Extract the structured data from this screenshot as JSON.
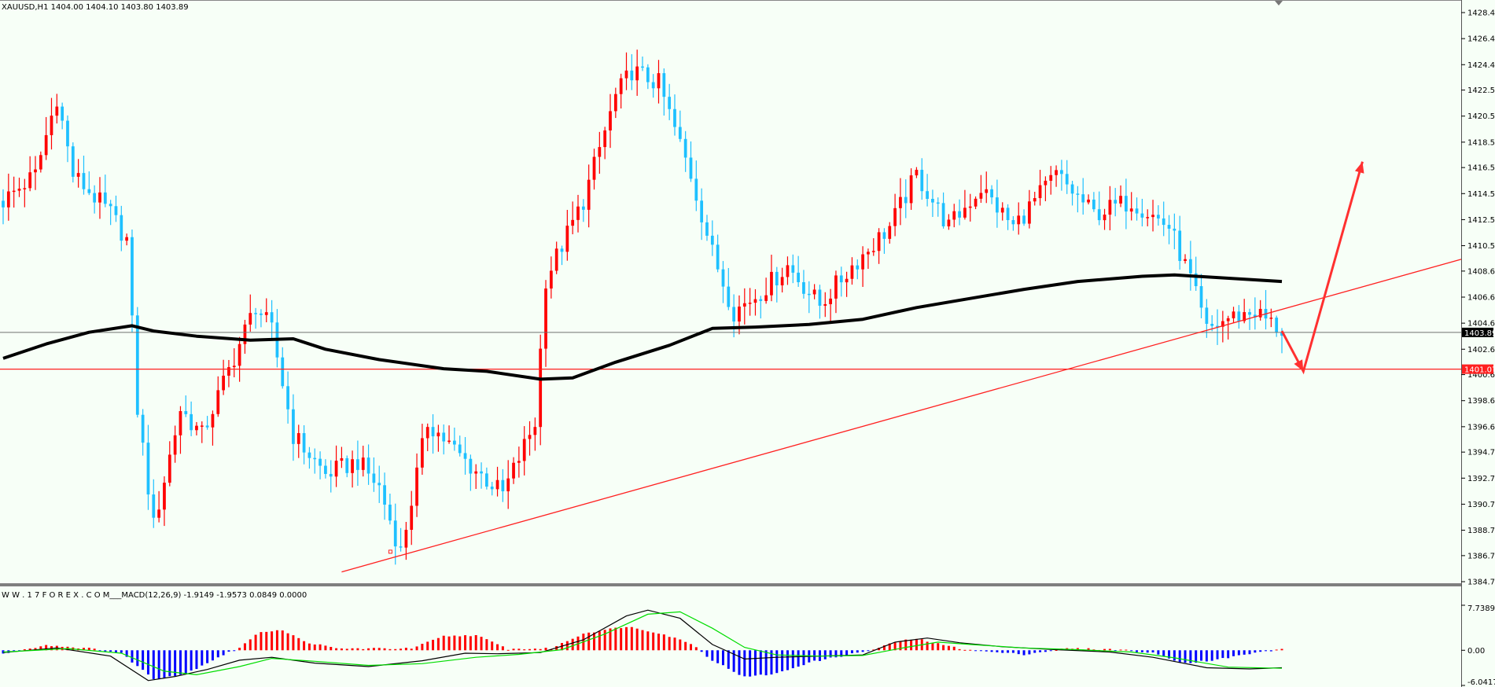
{
  "chart_data": [
    {
      "type": "candlestick",
      "header": "XAUUSD,H1  1404.00 1404.10 1403.80 1403.89",
      "ylim": [
        1384.75,
        1428.45
      ],
      "y_ticks": [
        "1428.45",
        "1426.45",
        "1424.45",
        "1422.50",
        "1420.50",
        "1418.50",
        "1416.55",
        "1414.55",
        "1412.55",
        "1410.55",
        "1408.60",
        "1406.60",
        "1404.60",
        "1402.60",
        "1400.65",
        "1398.65",
        "1396.65",
        "1394.70",
        "1392.70",
        "1390.70",
        "1388.70",
        "1386.75",
        "1384.75"
      ],
      "y_tick_values": [
        1428.45,
        1426.45,
        1424.45,
        1422.5,
        1420.5,
        1418.5,
        1416.55,
        1414.55,
        1412.55,
        1410.55,
        1408.6,
        1406.6,
        1404.6,
        1402.6,
        1400.65,
        1398.65,
        1396.65,
        1394.7,
        1392.7,
        1390.7,
        1388.7,
        1386.75,
        1384.75
      ],
      "current_price": "1403.89",
      "support_level": "1401.07",
      "anchors": [
        [
          0,
          1414.0
        ],
        [
          6,
          1416.0
        ],
        [
          10,
          1422.0
        ],
        [
          13,
          1416.0
        ],
        [
          20,
          1413.0
        ],
        [
          23,
          1411.0
        ],
        [
          25,
          1398.0
        ],
        [
          28,
          1389.0
        ],
        [
          33,
          1398.0
        ],
        [
          37,
          1396.0
        ],
        [
          43,
          1402.0
        ],
        [
          47,
          1406.0
        ],
        [
          50,
          1404.0
        ],
        [
          54,
          1396.0
        ],
        [
          60,
          1393.0
        ],
        [
          66,
          1394.0
        ],
        [
          70,
          1392.0
        ],
        [
          74,
          1387.0
        ],
        [
          79,
          1397.0
        ],
        [
          86,
          1394.0
        ],
        [
          93,
          1391.5
        ],
        [
          99,
          1397.0
        ],
        [
          101,
          1408.0
        ],
        [
          108,
          1414.0
        ],
        [
          114,
          1422.0
        ],
        [
          117,
          1424.0
        ],
        [
          122,
          1423.0
        ],
        [
          128,
          1416.0
        ],
        [
          132,
          1410.0
        ],
        [
          136,
          1405.5
        ],
        [
          141,
          1407.0
        ],
        [
          146,
          1409.0
        ],
        [
          152,
          1406.0
        ],
        [
          158,
          1409.0
        ],
        [
          165,
          1412.0
        ],
        [
          170,
          1416.0
        ],
        [
          176,
          1412.0
        ],
        [
          182,
          1415.0
        ],
        [
          188,
          1412.0
        ],
        [
          196,
          1416.0
        ],
        [
          203,
          1413.0
        ],
        [
          210,
          1414.0
        ],
        [
          217,
          1412.0
        ],
        [
          221,
          1408.0
        ],
        [
          224,
          1404.0
        ],
        [
          228,
          1405.0
        ],
        [
          233,
          1405.5
        ],
        [
          238,
          1404.0
        ]
      ],
      "x_range": [
        0,
        238
      ],
      "ma_line": {
        "color": "#000000",
        "points": [
          [
            0,
            1401.9
          ],
          [
            8,
            1403.0
          ],
          [
            16,
            1403.9
          ],
          [
            24,
            1404.4
          ],
          [
            28,
            1404.0
          ],
          [
            36,
            1403.6
          ],
          [
            46,
            1403.3
          ],
          [
            54,
            1403.4
          ],
          [
            60,
            1402.6
          ],
          [
            70,
            1401.8
          ],
          [
            82,
            1401.1
          ],
          [
            90,
            1400.9
          ],
          [
            100,
            1400.3
          ],
          [
            106,
            1400.4
          ],
          [
            114,
            1401.6
          ],
          [
            124,
            1402.9
          ],
          [
            132,
            1404.2
          ],
          [
            140,
            1404.3
          ],
          [
            150,
            1404.5
          ],
          [
            160,
            1404.9
          ],
          [
            170,
            1405.8
          ],
          [
            180,
            1406.5
          ],
          [
            190,
            1407.2
          ],
          [
            200,
            1407.8
          ],
          [
            212,
            1408.2
          ],
          [
            218,
            1408.3
          ],
          [
            238,
            1407.8
          ]
        ]
      },
      "trendline": {
        "color": "#ff2020",
        "from": [
          63,
          1385.5
        ],
        "to": [
          280,
          1410.5
        ]
      },
      "forecast": {
        "color": "#ff3030",
        "points": [
          [
            238,
            1404.0
          ],
          [
            242,
            1400.9
          ],
          [
            253,
            1417.0
          ]
        ]
      },
      "colors": {
        "up": "#ff0000",
        "down": "#1ec0ff",
        "background": "#f7fff7"
      }
    },
    {
      "type": "histogram",
      "header": "W W . 1 7 F O R E X . C O M___MACD(12,26,9) -1.9149 -1.9573 0.0849 0.0000",
      "ylim": [
        -6.0417,
        7.7389
      ],
      "y_ticks": [
        "7.7389",
        "0.00",
        "-6.0417"
      ],
      "y_tick_values": [
        7.7389,
        0.0,
        -6.0417
      ],
      "histogram_anchors": [
        [
          0,
          -0.6
        ],
        [
          8,
          0.9
        ],
        [
          16,
          0.3
        ],
        [
          22,
          -0.5
        ],
        [
          28,
          -4.9
        ],
        [
          34,
          -4.0
        ],
        [
          40,
          -1.2
        ],
        [
          44,
          0.5
        ],
        [
          48,
          3.2
        ],
        [
          52,
          3.5
        ],
        [
          56,
          1.5
        ],
        [
          62,
          0.3
        ],
        [
          70,
          0.3
        ],
        [
          76,
          0.3
        ],
        [
          82,
          2.4
        ],
        [
          88,
          2.6
        ],
        [
          94,
          0.2
        ],
        [
          102,
          0.3
        ],
        [
          108,
          2.9
        ],
        [
          116,
          4.1
        ],
        [
          122,
          3.0
        ],
        [
          128,
          1.2
        ],
        [
          132,
          -1.7
        ],
        [
          138,
          -4.6
        ],
        [
          144,
          -4.0
        ],
        [
          150,
          -2.1
        ],
        [
          156,
          -1.0
        ],
        [
          162,
          0.1
        ],
        [
          166,
          1.4
        ],
        [
          170,
          2.0
        ],
        [
          174,
          1.1
        ],
        [
          178,
          0.3
        ],
        [
          184,
          -0.3
        ],
        [
          190,
          -0.7
        ],
        [
          198,
          0.3
        ],
        [
          208,
          0.1
        ],
        [
          214,
          -0.5
        ],
        [
          220,
          -2.2
        ],
        [
          226,
          -1.6
        ],
        [
          232,
          -0.6
        ],
        [
          238,
          0.2
        ]
      ],
      "macd_line": [
        [
          0,
          -0.4
        ],
        [
          10,
          0.4
        ],
        [
          20,
          -1.0
        ],
        [
          27,
          -5.2
        ],
        [
          32,
          -4.5
        ],
        [
          38,
          -3.3
        ],
        [
          44,
          -1.7
        ],
        [
          50,
          -1.2
        ],
        [
          58,
          -2.2
        ],
        [
          68,
          -2.8
        ],
        [
          78,
          -1.8
        ],
        [
          86,
          -0.5
        ],
        [
          92,
          -0.6
        ],
        [
          100,
          -0.4
        ],
        [
          108,
          1.8
        ],
        [
          116,
          5.9
        ],
        [
          120,
          6.9
        ],
        [
          126,
          5.5
        ],
        [
          132,
          1.0
        ],
        [
          138,
          -1.5
        ],
        [
          144,
          -1.2
        ],
        [
          152,
          -1.0
        ],
        [
          160,
          -0.8
        ],
        [
          166,
          1.4
        ],
        [
          172,
          2.1
        ],
        [
          178,
          1.3
        ],
        [
          186,
          0.6
        ],
        [
          196,
          0.1
        ],
        [
          206,
          -0.3
        ],
        [
          214,
          -1.2
        ],
        [
          224,
          -3.0
        ],
        [
          232,
          -3.2
        ],
        [
          238,
          -3.0
        ]
      ],
      "signal_line": [
        [
          0,
          -0.3
        ],
        [
          12,
          0.3
        ],
        [
          22,
          -0.5
        ],
        [
          30,
          -3.6
        ],
        [
          36,
          -4.2
        ],
        [
          44,
          -2.8
        ],
        [
          50,
          -1.4
        ],
        [
          58,
          -1.9
        ],
        [
          68,
          -2.6
        ],
        [
          78,
          -2.3
        ],
        [
          88,
          -1.2
        ],
        [
          96,
          -0.7
        ],
        [
          104,
          0.1
        ],
        [
          112,
          2.8
        ],
        [
          120,
          6.2
        ],
        [
          126,
          6.6
        ],
        [
          132,
          3.8
        ],
        [
          138,
          0.5
        ],
        [
          144,
          -0.8
        ],
        [
          152,
          -1.0
        ],
        [
          160,
          -0.9
        ],
        [
          168,
          0.5
        ],
        [
          174,
          1.4
        ],
        [
          180,
          1.0
        ],
        [
          190,
          0.4
        ],
        [
          200,
          0.1
        ],
        [
          210,
          -0.3
        ],
        [
          218,
          -1.3
        ],
        [
          228,
          -2.9
        ],
        [
          238,
          -3.1
        ]
      ],
      "colors": {
        "hist_up": "#ff0000",
        "hist_down": "#0000ff",
        "macd": "#000000",
        "signal": "#00dd00"
      }
    }
  ]
}
